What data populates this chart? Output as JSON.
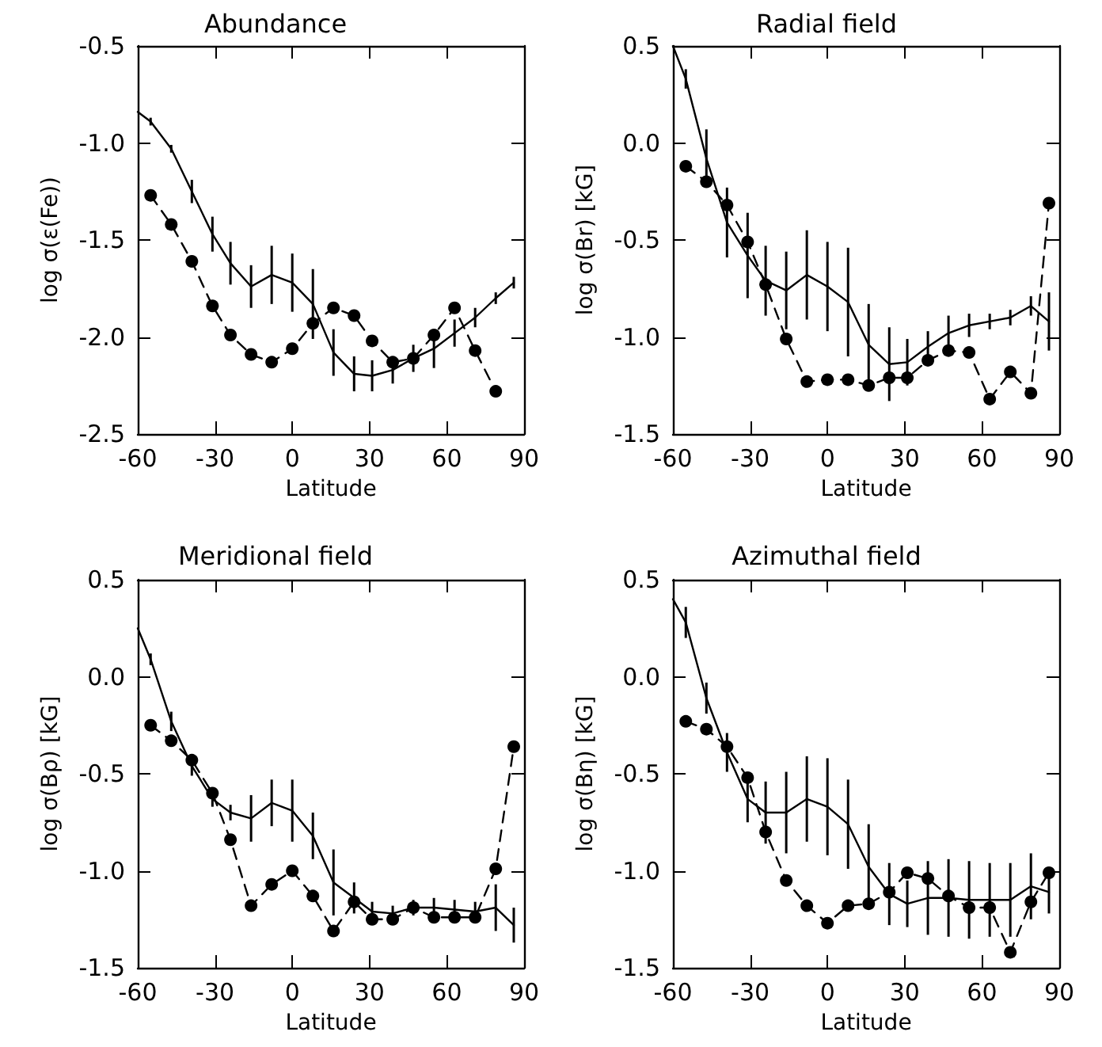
{
  "chart_data": [
    {
      "type": "line",
      "title": "Abundance",
      "xlabel": "Latitude",
      "ylabel": "log σ(ε(Fe))",
      "xlim": [
        -60,
        90
      ],
      "xticks": [
        -60,
        -30,
        0,
        30,
        60,
        90
      ],
      "ylim": [
        -2.5,
        -0.5
      ],
      "yticks": [
        {
          "value": -2.5,
          "label": "-2.5"
        },
        {
          "value": -2.0,
          "label": "-2.0"
        },
        {
          "value": -1.5,
          "label": "-1.5"
        },
        {
          "value": -1.0,
          "label": "-1.0"
        },
        {
          "value": -0.5,
          "label": "-0.5"
        }
      ],
      "grid": false,
      "series": [
        {
          "color": "#000000",
          "marker": "none",
          "line_style": "solid",
          "x": [
            -60,
            -55,
            -47,
            -39,
            -31,
            -24,
            -16,
            -8,
            0,
            8,
            16,
            24,
            31,
            39,
            47,
            55,
            63,
            71,
            79,
            86
          ],
          "values": [
            -0.84,
            -0.89,
            -1.03,
            -1.25,
            -1.47,
            -1.62,
            -1.74,
            -1.68,
            -1.72,
            -1.83,
            -2.08,
            -2.19,
            -2.2,
            -2.17,
            -2.11,
            -2.06,
            -1.98,
            -1.9,
            -1.8,
            -1.72
          ],
          "errors": [
            null,
            0.02,
            0.02,
            0.06,
            0.09,
            0.11,
            0.11,
            0.15,
            0.15,
            0.18,
            0.12,
            0.09,
            0.08,
            0.07,
            0.07,
            0.1,
            0.07,
            0.05,
            0.03,
            0.03
          ]
        },
        {
          "color": "#000000",
          "marker": "circle",
          "line_style": "dashed",
          "x": [
            -55,
            -47,
            -39,
            -31,
            -24,
            -16,
            -8,
            0,
            8,
            16,
            24,
            31,
            39,
            47,
            55,
            63,
            71,
            79
          ],
          "values": [
            -1.27,
            -1.42,
            -1.61,
            -1.84,
            -1.99,
            -2.09,
            -2.13,
            -2.06,
            -1.93,
            -1.85,
            -1.89,
            -2.02,
            -2.13,
            -2.11,
            -1.99,
            -1.85,
            -2.07,
            -2.28
          ]
        }
      ]
    },
    {
      "type": "line",
      "title": "Radial field",
      "xlabel": "Latitude",
      "ylabel": "log σ(Br) [kG]",
      "xlim": [
        -60,
        90
      ],
      "xticks": [
        -60,
        -30,
        0,
        30,
        60,
        90
      ],
      "ylim": [
        -1.5,
        0.5
      ],
      "yticks": [
        {
          "value": -1.5,
          "label": "-1.5"
        },
        {
          "value": -1.0,
          "label": "-1.0"
        },
        {
          "value": -0.5,
          "label": "-0.5"
        },
        {
          "value": 0,
          "label": "0.0"
        },
        {
          "value": 0.5,
          "label": "0.5"
        }
      ],
      "grid": false,
      "series": [
        {
          "color": "#000000",
          "marker": "none",
          "line_style": "solid",
          "x": [
            -60,
            -55,
            -47,
            -39,
            -31,
            -24,
            -16,
            -8,
            0,
            8,
            16,
            24,
            31,
            39,
            47,
            55,
            63,
            71,
            79,
            86
          ],
          "values": [
            0.5,
            0.33,
            -0.08,
            -0.41,
            -0.58,
            -0.71,
            -0.76,
            -0.68,
            -0.74,
            -0.82,
            -1.04,
            -1.14,
            -1.13,
            -1.05,
            -0.98,
            -0.94,
            -0.92,
            -0.9,
            -0.84,
            -0.92
          ],
          "errors": [
            null,
            0.05,
            0.15,
            0.18,
            0.22,
            0.18,
            0.2,
            0.23,
            0.23,
            0.28,
            0.21,
            0.19,
            0.12,
            0.08,
            0.09,
            0.06,
            0.04,
            0.04,
            0.05,
            0.15
          ]
        },
        {
          "color": "#000000",
          "marker": "circle",
          "line_style": "dashed",
          "x": [
            -55,
            -47,
            -39,
            -31,
            -24,
            -16,
            -8,
            0,
            8,
            16,
            24,
            31,
            39,
            47,
            55,
            63,
            71,
            79,
            86
          ],
          "values": [
            -0.12,
            -0.2,
            -0.32,
            -0.51,
            -0.73,
            -1.01,
            -1.23,
            -1.22,
            -1.22,
            -1.25,
            -1.21,
            -1.21,
            -1.12,
            -1.07,
            -1.08,
            -1.32,
            -1.18,
            -1.29,
            -0.31
          ]
        }
      ]
    },
    {
      "type": "line",
      "title": "Meridional field",
      "xlabel": "Latitude",
      "ylabel": "log σ(Bρ) [kG]",
      "xlim": [
        -60,
        90
      ],
      "xticks": [
        -60,
        -30,
        0,
        30,
        60,
        90
      ],
      "ylim": [
        -1.5,
        0.5
      ],
      "yticks": [
        {
          "value": -1.5,
          "label": "-1.5"
        },
        {
          "value": -1.0,
          "label": "-1.0"
        },
        {
          "value": -0.5,
          "label": "-0.5"
        },
        {
          "value": 0,
          "label": "0.0"
        },
        {
          "value": 0.5,
          "label": "0.5"
        }
      ],
      "grid": false,
      "series": [
        {
          "color": "#000000",
          "marker": "none",
          "line_style": "solid",
          "x": [
            -60,
            -55,
            -47,
            -39,
            -31,
            -24,
            -16,
            -8,
            0,
            8,
            16,
            24,
            31,
            39,
            47,
            55,
            63,
            71,
            79,
            86
          ],
          "values": [
            0.25,
            0.09,
            -0.23,
            -0.46,
            -0.63,
            -0.7,
            -0.73,
            -0.65,
            -0.69,
            -0.82,
            -1.06,
            -1.14,
            -1.21,
            -1.22,
            -1.19,
            -1.19,
            -1.2,
            -1.21,
            -1.19,
            -1.28
          ],
          "errors": [
            null,
            0.03,
            0.05,
            0.05,
            0.04,
            0.04,
            0.12,
            0.12,
            0.16,
            0.12,
            0.17,
            0.08,
            0.05,
            0.04,
            0.04,
            0.05,
            0.05,
            0.05,
            0.12,
            0.09
          ]
        },
        {
          "color": "#000000",
          "marker": "circle",
          "line_style": "dashed",
          "x": [
            -55,
            -47,
            -39,
            -31,
            -24,
            -16,
            -8,
            0,
            8,
            16,
            24,
            31,
            39,
            47,
            55,
            63,
            71,
            79,
            86
          ],
          "values": [
            -0.25,
            -0.33,
            -0.43,
            -0.6,
            -0.84,
            -1.18,
            -1.07,
            -1.0,
            -1.13,
            -1.31,
            -1.16,
            -1.25,
            -1.25,
            -1.19,
            -1.24,
            -1.24,
            -1.24,
            -0.99,
            -0.36
          ]
        }
      ]
    },
    {
      "type": "line",
      "title": "Azimuthal field",
      "xlabel": "Latitude",
      "ylabel": "log σ(Bη) [kG]",
      "xlim": [
        -60,
        90
      ],
      "xticks": [
        -60,
        -30,
        0,
        30,
        60,
        90
      ],
      "ylim": [
        -1.5,
        0.5
      ],
      "yticks": [
        {
          "value": -1.5,
          "label": "-1.5"
        },
        {
          "value": -1.0,
          "label": "-1.0"
        },
        {
          "value": -0.5,
          "label": "-0.5"
        },
        {
          "value": 0,
          "label": "0.0"
        },
        {
          "value": 0.5,
          "label": "0.5"
        }
      ],
      "grid": false,
      "series": [
        {
          "color": "#000000",
          "marker": "none",
          "line_style": "solid",
          "x": [
            -60,
            -55,
            -47,
            -39,
            -31,
            -24,
            -16,
            -8,
            0,
            8,
            16,
            24,
            31,
            39,
            47,
            55,
            63,
            71,
            79,
            86
          ],
          "values": [
            0.4,
            0.28,
            -0.11,
            -0.39,
            -0.63,
            -0.7,
            -0.7,
            -0.63,
            -0.67,
            -0.76,
            -0.98,
            -1.12,
            -1.17,
            -1.14,
            -1.14,
            -1.15,
            -1.15,
            -1.15,
            -1.08,
            -1.11
          ],
          "errors": [
            null,
            0.08,
            0.08,
            0.1,
            0.12,
            0.16,
            0.21,
            0.22,
            0.25,
            0.23,
            0.22,
            0.16,
            0.12,
            0.19,
            0.2,
            0.2,
            0.19,
            0.19,
            0.17,
            0.11
          ]
        },
        {
          "color": "#000000",
          "marker": "circle",
          "line_style": "dashed",
          "x": [
            -55,
            -47,
            -39,
            -31,
            -24,
            -16,
            -8,
            0,
            8,
            16,
            24,
            31,
            39,
            47,
            55,
            63,
            71,
            79,
            86
          ],
          "values": [
            -0.23,
            -0.27,
            -0.36,
            -0.52,
            -0.8,
            -1.05,
            -1.18,
            -1.27,
            -1.18,
            -1.17,
            -1.11,
            -1.01,
            -1.04,
            -1.13,
            -1.19,
            -1.19,
            -1.42,
            -1.16,
            -1.01
          ]
        }
      ]
    }
  ]
}
